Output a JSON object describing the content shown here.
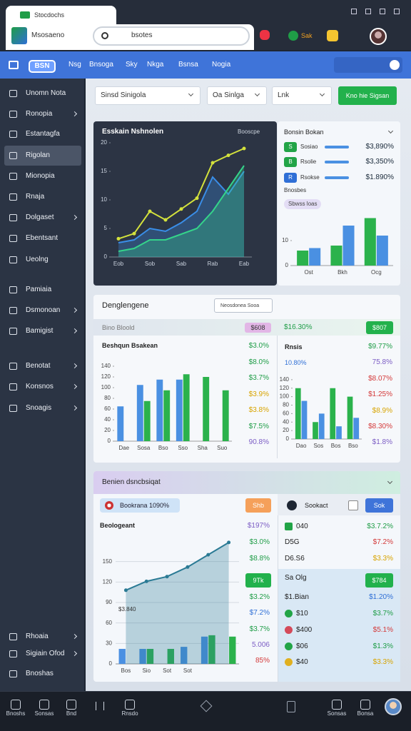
{
  "browser": {
    "tab": "Stocdochs",
    "site": "Msosaeno",
    "address": "bsotes",
    "badge": "Sak"
  },
  "nav": {
    "logo": "BSN",
    "items": [
      "Nsg",
      "Bnsoga",
      "Sky",
      "Nkga",
      "Bsnsa",
      "Nogia"
    ]
  },
  "sidebar": {
    "items": [
      "Unomn Nota",
      "Ronopia",
      "Estantagfa",
      "Rigolan",
      "Mionopia",
      "Rnaja",
      "Dolgaset",
      "Ebentsant",
      "Ueolng",
      "Pamiaia",
      "Dsmonoan",
      "Bamigist",
      "Benotat",
      "Konsnos",
      "Snoagis",
      "Rhoaia",
      "Sigiain Ofod",
      "Bnoshas"
    ],
    "active": 3
  },
  "filters": {
    "selects": [
      "Sinsd Sinigola",
      "Oa Sinlga",
      "Lnk"
    ],
    "button": "Kno hie Sigsan"
  },
  "main_chart": {
    "type": "line",
    "title": "Esskain Nshnolen",
    "subtitle": "Booscpe",
    "categories": [
      "Eob",
      null,
      "Sob",
      null,
      "Sab",
      null,
      "Rab",
      null,
      "Eab"
    ],
    "series": [
      {
        "style": "area",
        "color": "#3a8ee8",
        "values": [
          2.5,
          3,
          5,
          4.5,
          6,
          8,
          14,
          11,
          15
        ]
      },
      {
        "style": "area",
        "color": "#35d48a",
        "values": [
          1,
          1.5,
          3,
          3,
          4,
          5,
          8,
          12,
          16
        ]
      },
      {
        "style": "line",
        "color": "#d4e23c",
        "values": [
          3.2,
          4.1,
          8,
          6.5,
          8.4,
          10.3,
          16.5,
          17.8,
          19
        ],
        "dots": true
      }
    ],
    "ylim": [
      0,
      20
    ],
    "yticks": [
      0,
      5,
      10,
      15,
      20
    ],
    "grid": false
  },
  "summary": {
    "title": "Bonsin Bokan",
    "rows": [
      {
        "badge": "S",
        "label": "Sosiao",
        "value": "$3,890%",
        "color": "#22a447"
      },
      {
        "badge": "B",
        "label": "Rsolie",
        "value": "$3,350%",
        "color": "#22a447"
      },
      {
        "badge": "R",
        "label": "Rsokse",
        "value": "$1.890%",
        "color": "#2f6fd6"
      }
    ],
    "caption": "Bnosbes",
    "chip": "Sbwss loas",
    "chart": {
      "type": "bar",
      "categories": [
        "Ost",
        "Bkh",
        "Ocg"
      ],
      "series": [
        {
          "color": "#2bb24c",
          "values": [
            6,
            8,
            19
          ]
        },
        {
          "color": "#4a90e2",
          "values": [
            7,
            16,
            12
          ]
        }
      ],
      "ylim": [
        0,
        20
      ],
      "yticks": [
        0,
        10
      ],
      "grid": false
    }
  },
  "overview": {
    "title": "Denglengene",
    "dropdown": "Neosdonea Sooa",
    "band": {
      "label": "Bino Bloold",
      "badge": "$608",
      "value": "$16.30%",
      "button": "$807"
    },
    "left": {
      "chart": {
        "type": "bar",
        "title": "Beshqun Bsakean",
        "categories": [
          "Dae",
          "Sosa",
          "Bso",
          "Sso",
          "Sha",
          "Suo"
        ],
        "series": [
          {
            "color": "#4a90e2",
            "values": [
              65,
              105,
              115,
              115,
              0,
              0
            ]
          },
          {
            "color": "#2bb24c",
            "values": [
              0,
              75,
              95,
              125,
              120,
              95
            ]
          }
        ],
        "ylim": [
          0,
          160
        ],
        "yticks": [
          0,
          20,
          40,
          60,
          80,
          100,
          120,
          140
        ],
        "grid": false
      },
      "values": [
        {
          "text": "$3.0%",
          "color": "#1f9d47"
        },
        {
          "text": "$8.0%",
          "color": "#1f9d47"
        },
        {
          "text": "$3.7%",
          "color": "#1f9d47"
        },
        {
          "text": "$3.9%",
          "color": "#d8a400"
        },
        {
          "text": "$3.8%",
          "color": "#d8a400"
        },
        {
          "text": "$7.5%",
          "color": "#1f9d47"
        },
        {
          "text": "90.8%",
          "color": "#7b5cc4"
        }
      ]
    },
    "right": {
      "chart": {
        "type": "bar",
        "title": "Rnsis",
        "subtitle": "10.80%",
        "categories": [
          "Dao",
          "Sos",
          "Bos",
          "Bso"
        ],
        "series": [
          {
            "color": "#2bb24c",
            "values": [
              120,
              40,
              120,
              100
            ]
          },
          {
            "color": "#4a90e2",
            "values": [
              90,
              60,
              30,
              50
            ]
          }
        ],
        "ylim": [
          0,
          160
        ],
        "yticks": [
          0,
          20,
          40,
          60,
          80,
          100,
          120,
          140
        ],
        "grid": false
      },
      "values": [
        {
          "text": "$9.77%",
          "color": "#1f9d47"
        },
        {
          "text": "75.8%",
          "color": "#7b5cc4"
        },
        {
          "text": "$8.07%",
          "color": "#d43a3a"
        },
        {
          "text": "$1.25%",
          "color": "#d43a3a"
        },
        {
          "text": "$8.9%",
          "color": "#d8a400"
        },
        {
          "text": "$8.30%",
          "color": "#d43a3a"
        },
        {
          "text": "$1.8%",
          "color": "#7b5cc4"
        }
      ]
    }
  },
  "report": {
    "title": "Benien dsncbsiqat",
    "pill": "Bookrana 1090%",
    "badge": "Shb",
    "chart": {
      "type": "line",
      "title": "Beologeant",
      "annotation": "$3.840",
      "categories": [
        "Bos",
        "Sio",
        "Sot",
        "Sot",
        null,
        null
      ],
      "series": [
        {
          "style": "bar",
          "color": "#4a90e2",
          "values": [
            22,
            22,
            0,
            25,
            40,
            0
          ]
        },
        {
          "style": "bar",
          "color": "#2bb24c",
          "values": [
            0,
            22,
            22,
            0,
            42,
            40
          ]
        },
        {
          "style": "area",
          "color": "#2a7a94",
          "values": [
            108,
            121,
            128,
            142,
            160,
            178
          ],
          "dots": true
        }
      ],
      "ylim": [
        0,
        180
      ],
      "yticks": [
        0,
        30,
        60,
        90,
        120,
        150
      ],
      "grid": true
    },
    "values": [
      {
        "text": "$197%",
        "color": "#7b5cc4"
      },
      {
        "text": "$3.0%",
        "color": "#1f9d47"
      },
      {
        "text": "$8.8%",
        "color": "#1f9d47"
      },
      {
        "text": "9Tk",
        "button": true
      },
      {
        "text": "$3.2%",
        "color": "#1f9d47"
      },
      {
        "text": "$7.2%",
        "color": "#2f6fd6"
      },
      {
        "text": "$3.7%",
        "color": "#1f9d47"
      },
      {
        "text": "5.006",
        "color": "#7b5cc4"
      },
      {
        "text": "85%",
        "color": "#d43a3a"
      }
    ],
    "side": {
      "title": "Sookact",
      "button": "Sok",
      "rows": [
        {
          "label": "040",
          "value": "$3.7.2%",
          "marker": "#22a447",
          "color": "#1f9d47"
        },
        {
          "label": "D5G",
          "value": "$7.2%",
          "color": "#d43a3a"
        },
        {
          "label": "D6.S6",
          "value": "$3.3%",
          "color": "#d8a400"
        },
        {
          "label": "Sa Olg",
          "button": "$784"
        },
        {
          "label": "$1.Bian",
          "value": "$1.20%",
          "color": "#2f6fd6"
        },
        {
          "label": "$10",
          "value": "$3.7%",
          "marker": "#22a447",
          "color": "#1f9d47"
        },
        {
          "label": "$400",
          "value": "$5.1%",
          "marker": "#d44a5a",
          "color": "#d43a3a"
        },
        {
          "label": "$06",
          "value": "$1.3%",
          "marker": "#22a447",
          "color": "#1f9d47"
        },
        {
          "label": "$40",
          "value": "$3.3%",
          "marker": "#e0b020",
          "color": "#d8a400"
        }
      ]
    }
  },
  "taskbar": [
    "Bnoshs",
    "Sonsas",
    "Bnd",
    "Rnsdo",
    "Sonsas",
    "Bonsa"
  ]
}
